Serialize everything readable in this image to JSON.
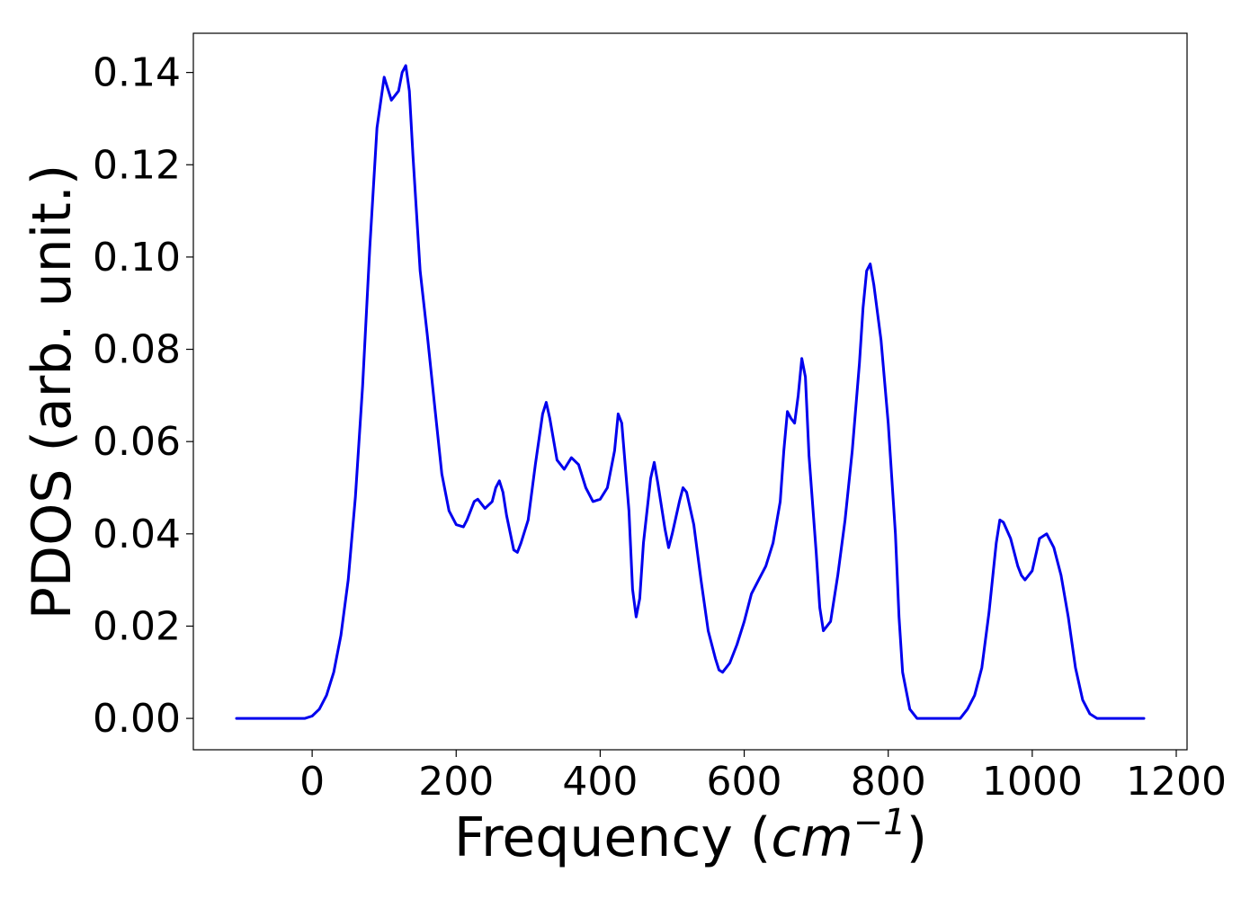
{
  "chart_data": {
    "type": "line",
    "title": "",
    "xlabel": {
      "prefix": "Frequency (",
      "base": "cm",
      "exponent": "−1",
      "suffix": ")"
    },
    "ylabel": "PDOS (arb. unit.)",
    "xlim": [
      -165,
      1215
    ],
    "ylim": [
      -0.0068,
      0.1485
    ],
    "xticks": [
      0,
      200,
      400,
      600,
      800,
      1000,
      1200
    ],
    "xtick_labels": [
      "0",
      "200",
      "400",
      "600",
      "800",
      "1000",
      "1200"
    ],
    "yticks": [
      0.0,
      0.02,
      0.04,
      0.06,
      0.08,
      0.1,
      0.12,
      0.14
    ],
    "ytick_labels": [
      "0.00",
      "0.02",
      "0.04",
      "0.06",
      "0.08",
      "0.10",
      "0.12",
      "0.14"
    ],
    "grid": false,
    "legend": "none",
    "series": [
      {
        "color": "#0000ee",
        "x": [
          -105,
          -90,
          -60,
          -30,
          -10,
          0,
          10,
          20,
          30,
          40,
          50,
          60,
          70,
          80,
          90,
          100,
          110,
          120,
          125,
          130,
          135,
          140,
          150,
          160,
          170,
          180,
          190,
          200,
          210,
          215,
          220,
          225,
          230,
          240,
          250,
          255,
          260,
          265,
          270,
          280,
          285,
          290,
          300,
          310,
          320,
          325,
          330,
          340,
          350,
          360,
          370,
          380,
          390,
          400,
          410,
          420,
          425,
          430,
          440,
          445,
          450,
          455,
          460,
          470,
          475,
          480,
          490,
          495,
          500,
          510,
          515,
          520,
          530,
          540,
          550,
          560,
          565,
          570,
          580,
          590,
          600,
          610,
          620,
          630,
          640,
          650,
          655,
          660,
          665,
          670,
          675,
          680,
          685,
          690,
          700,
          705,
          710,
          720,
          730,
          740,
          750,
          760,
          765,
          770,
          775,
          780,
          790,
          800,
          810,
          815,
          820,
          830,
          840,
          850,
          870,
          890,
          900,
          910,
          920,
          930,
          940,
          950,
          955,
          960,
          970,
          980,
          985,
          990,
          1000,
          1010,
          1015,
          1020,
          1030,
          1040,
          1050,
          1060,
          1070,
          1080,
          1090,
          1110,
          1130,
          1155
        ],
        "y": [
          0.0,
          0.0,
          0.0,
          0.0,
          0.0,
          0.0005,
          0.002,
          0.005,
          0.01,
          0.018,
          0.03,
          0.048,
          0.072,
          0.102,
          0.128,
          0.139,
          0.134,
          0.136,
          0.14,
          0.1415,
          0.136,
          0.122,
          0.097,
          0.083,
          0.068,
          0.053,
          0.045,
          0.042,
          0.0415,
          0.043,
          0.045,
          0.047,
          0.0475,
          0.0455,
          0.047,
          0.05,
          0.0515,
          0.049,
          0.044,
          0.0365,
          0.036,
          0.038,
          0.043,
          0.055,
          0.066,
          0.0685,
          0.065,
          0.056,
          0.054,
          0.0565,
          0.055,
          0.05,
          0.047,
          0.0475,
          0.05,
          0.058,
          0.066,
          0.064,
          0.045,
          0.028,
          0.022,
          0.026,
          0.038,
          0.052,
          0.0555,
          0.051,
          0.041,
          0.037,
          0.04,
          0.047,
          0.05,
          0.049,
          0.042,
          0.03,
          0.019,
          0.013,
          0.0105,
          0.01,
          0.012,
          0.016,
          0.021,
          0.027,
          0.03,
          0.033,
          0.038,
          0.047,
          0.058,
          0.0665,
          0.065,
          0.064,
          0.07,
          0.078,
          0.074,
          0.057,
          0.036,
          0.024,
          0.019,
          0.021,
          0.031,
          0.043,
          0.058,
          0.077,
          0.089,
          0.097,
          0.0985,
          0.094,
          0.082,
          0.064,
          0.04,
          0.022,
          0.01,
          0.002,
          0.0,
          0.0,
          0.0,
          0.0,
          0.0,
          0.002,
          0.005,
          0.011,
          0.023,
          0.038,
          0.043,
          0.0425,
          0.039,
          0.033,
          0.031,
          0.03,
          0.032,
          0.039,
          0.0395,
          0.04,
          0.037,
          0.031,
          0.022,
          0.011,
          0.004,
          0.001,
          0.0,
          0.0,
          0.0,
          0.0
        ]
      }
    ]
  }
}
